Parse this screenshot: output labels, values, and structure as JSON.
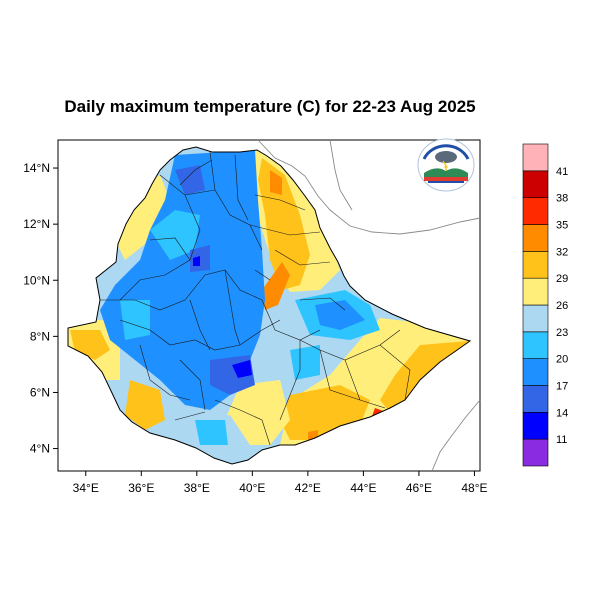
{
  "title": "Daily maximum temperature (C) for 22-23 Aug 2025",
  "map": {
    "lon_range": [
      33,
      48.2
    ],
    "lat_range": [
      3.2,
      15
    ],
    "lon_ticks": [
      "34°E",
      "36°E",
      "38°E",
      "40°E",
      "42°E",
      "44°E",
      "46°E",
      "48°E"
    ],
    "lat_ticks": [
      "4°N",
      "6°N",
      "8°N",
      "10°N",
      "12°N",
      "14°N"
    ],
    "lon_tick_values": [
      34,
      36,
      38,
      40,
      42,
      44,
      46,
      48
    ],
    "lat_tick_values": [
      4,
      6,
      8,
      10,
      12,
      14
    ]
  },
  "colorbar": {
    "labels": [
      "11",
      "14",
      "17",
      "20",
      "23",
      "26",
      "29",
      "32",
      "35",
      "38",
      "41"
    ],
    "colors": [
      "#8a2be2",
      "#0000ff",
      "#3366e6",
      "#1e90ff",
      "#2ec4ff",
      "#add8f2",
      "#ffef7a",
      "#ffc21a",
      "#ff8c00",
      "#ff2a00",
      "#cc0000",
      "#ffb3b8"
    ]
  },
  "logo": {
    "icon": "ethiopian-meteorology-logo"
  }
}
